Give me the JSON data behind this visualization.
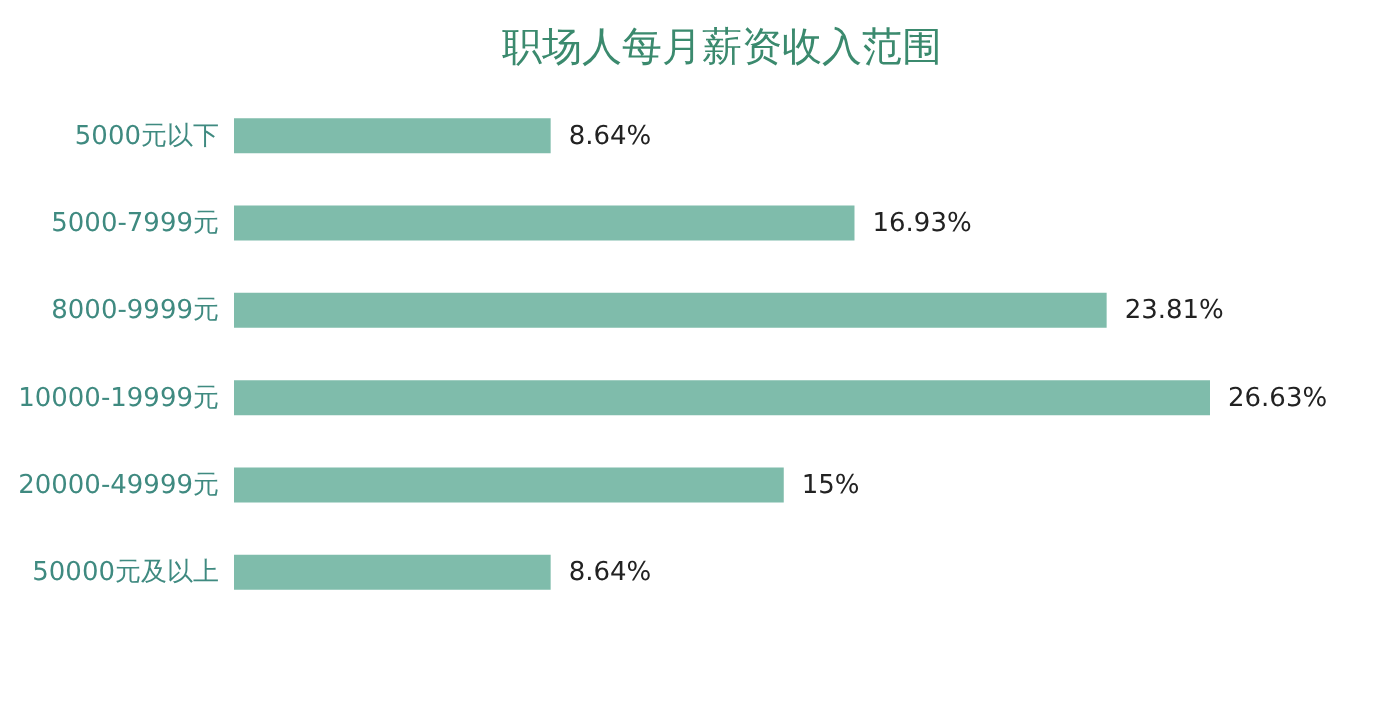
{
  "chart_data": {
    "type": "bar",
    "orientation": "horizontal",
    "title": "职场人每月薪资收入范围",
    "categories": [
      "5000元以下",
      "5000-7999元",
      "8000-9999元",
      "10000-19999元",
      "20000-49999元",
      "50000元及以上"
    ],
    "values": [
      8.64,
      16.93,
      23.81,
      26.63,
      15,
      8.64
    ],
    "value_labels": [
      "8.64%",
      "16.93%",
      "23.81%",
      "26.63%",
      "15%",
      "8.64%"
    ],
    "color": "#7fbcab"
  }
}
